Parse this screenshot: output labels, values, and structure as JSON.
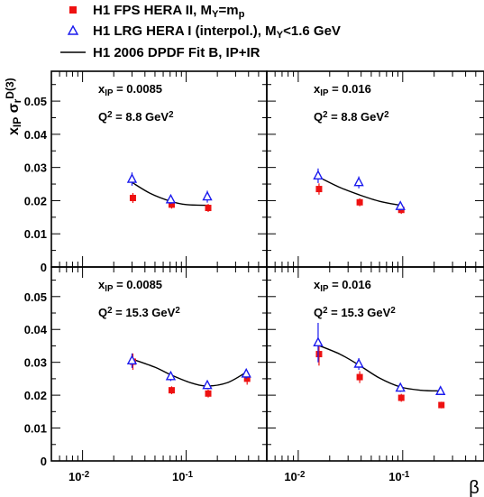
{
  "legend": {
    "items": [
      {
        "marker": "filled-square",
        "color": "#ee1111",
        "parts": [
          {
            "t": "H1 FPS HERA II,  M"
          },
          {
            "t": "Y",
            "sub": true
          },
          {
            "t": "=m"
          },
          {
            "t": "p",
            "sub": true
          }
        ]
      },
      {
        "marker": "open-triangle",
        "color": "#1a1aee",
        "parts": [
          {
            "t": "H1 LRG HERA I (interpol.),  M"
          },
          {
            "t": "Y",
            "sub": true
          },
          {
            "t": "<1.6 GeV"
          }
        ]
      },
      {
        "marker": "line",
        "color": "#000000",
        "parts": [
          {
            "t": "H1 2006 DPDF Fit B, IP+IR"
          }
        ]
      }
    ]
  },
  "ylabel": {
    "base": "x",
    "base_sub": "IP",
    "sigma": "σ",
    "sigma_sub": "r",
    "sigma_sup": "D(3)"
  },
  "xlabel": "β",
  "chart_data": {
    "type": "scatter",
    "x_scale": "log",
    "xlim": [
      0.005,
      0.6
    ],
    "ylim": [
      0,
      0.059
    ],
    "y_ticks": [
      0,
      0.01,
      0.02,
      0.03,
      0.04,
      0.05
    ],
    "y_tick_labels": [
      "0",
      "0.01",
      "0.02",
      "0.03",
      "0.04",
      "0.05"
    ],
    "x_tick_labels": [
      {
        "base": "10",
        "exp": "-2"
      },
      {
        "base": "10",
        "exp": "-1"
      }
    ],
    "colors": {
      "fps": "#ee1111",
      "lrg": "#1a1aee",
      "fit": "#000000"
    },
    "panels": [
      {
        "xip_base": "x",
        "xip_sub": "IP",
        "xip_value": "= 0.0085",
        "q2_base": "Q",
        "q2_sup": "2",
        "q2_value": "= 8.8 GeV",
        "q2_unit_sup": "2",
        "fps": [
          {
            "x": 0.03,
            "y": 0.0208,
            "err": 0.0015
          },
          {
            "x": 0.071,
            "y": 0.0188,
            "err": 0.0012
          },
          {
            "x": 0.16,
            "y": 0.0178,
            "err": 0.0012
          }
        ],
        "lrg": [
          {
            "x": 0.03,
            "y": 0.0265,
            "err": 0.002
          },
          {
            "x": 0.071,
            "y": 0.0203,
            "err": 0.0013
          },
          {
            "x": 0.16,
            "y": 0.0212,
            "err": 0.0018
          }
        ],
        "fit": [
          [
            0.03,
            0.0255
          ],
          [
            0.045,
            0.0222
          ],
          [
            0.071,
            0.0198
          ],
          [
            0.1,
            0.0188
          ],
          [
            0.16,
            0.0186
          ]
        ]
      },
      {
        "xip_base": "x",
        "xip_sub": "IP",
        "xip_value": "= 0.016",
        "q2_base": "Q",
        "q2_sup": "2",
        "q2_value": "= 8.8 GeV",
        "q2_unit_sup": "2",
        "fps": [
          {
            "x": 0.0155,
            "y": 0.0235,
            "err": 0.0017
          },
          {
            "x": 0.038,
            "y": 0.0195,
            "err": 0.0012
          },
          {
            "x": 0.095,
            "y": 0.0172,
            "err": 0.0012
          }
        ],
        "lrg": [
          {
            "x": 0.0155,
            "y": 0.0275,
            "err": 0.0022
          },
          {
            "x": 0.038,
            "y": 0.0255,
            "err": 0.0018
          },
          {
            "x": 0.095,
            "y": 0.0183,
            "err": 0.0012
          }
        ],
        "fit": [
          [
            0.0155,
            0.0272
          ],
          [
            0.025,
            0.024
          ],
          [
            0.038,
            0.0218
          ],
          [
            0.06,
            0.0198
          ],
          [
            0.095,
            0.0186
          ]
        ]
      },
      {
        "xip_base": "x",
        "xip_sub": "IP",
        "xip_value": "= 0.0085",
        "q2_base": "Q",
        "q2_sup": "2",
        "q2_value": "= 15.3 GeV",
        "q2_unit_sup": "2",
        "fps": [
          {
            "x": 0.03,
            "y": 0.0302,
            "err": 0.0025
          },
          {
            "x": 0.071,
            "y": 0.0215,
            "err": 0.0012
          },
          {
            "x": 0.16,
            "y": 0.0205,
            "err": 0.0012
          },
          {
            "x": 0.38,
            "y": 0.025,
            "err": 0.0018
          }
        ],
        "lrg": [
          {
            "x": 0.03,
            "y": 0.0305,
            "err": 0.0022
          },
          {
            "x": 0.071,
            "y": 0.0257,
            "err": 0.0014
          },
          {
            "x": 0.16,
            "y": 0.023,
            "err": 0.0012
          },
          {
            "x": 0.38,
            "y": 0.0265,
            "err": 0.0015
          }
        ],
        "fit": [
          [
            0.03,
            0.031
          ],
          [
            0.05,
            0.0285
          ],
          [
            0.071,
            0.0262
          ],
          [
            0.11,
            0.0238
          ],
          [
            0.16,
            0.0228
          ],
          [
            0.25,
            0.0238
          ],
          [
            0.38,
            0.027
          ]
        ]
      },
      {
        "xip_base": "x",
        "xip_sub": "IP",
        "xip_value": "= 0.016",
        "q2_base": "Q",
        "q2_sup": "2",
        "q2_value": "= 15.3 GeV",
        "q2_unit_sup": "2",
        "fps": [
          {
            "x": 0.0155,
            "y": 0.0325,
            "err": 0.0035
          },
          {
            "x": 0.038,
            "y": 0.0255,
            "err": 0.0018
          },
          {
            "x": 0.095,
            "y": 0.0192,
            "err": 0.0012
          },
          {
            "x": 0.23,
            "y": 0.017,
            "err": 0.001
          }
        ],
        "lrg": [
          {
            "x": 0.0155,
            "y": 0.036,
            "err": 0.006
          },
          {
            "x": 0.038,
            "y": 0.0295,
            "err": 0.0018
          },
          {
            "x": 0.095,
            "y": 0.0222,
            "err": 0.0012
          },
          {
            "x": 0.23,
            "y": 0.0212,
            "err": 0.0008
          }
        ],
        "fit": [
          [
            0.0155,
            0.0352
          ],
          [
            0.025,
            0.0325
          ],
          [
            0.038,
            0.0292
          ],
          [
            0.06,
            0.0252
          ],
          [
            0.095,
            0.0225
          ],
          [
            0.15,
            0.0215
          ],
          [
            0.23,
            0.0213
          ]
        ]
      }
    ]
  }
}
